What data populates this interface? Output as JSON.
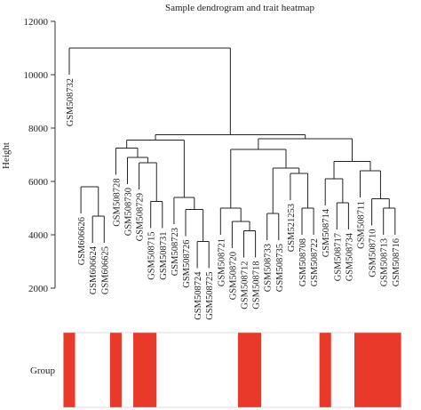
{
  "chart_data": {
    "type": "dendrogram",
    "title": "Sample dendrogram and trait heatmap",
    "ylabel": "Height",
    "ylim": [
      2000,
      12000
    ],
    "yticks": [
      2000,
      4000,
      6000,
      8000,
      10000,
      12000
    ],
    "leaves": [
      {
        "name": "GSM508732",
        "x": 1
      },
      {
        "name": "GSM606626",
        "x": 2
      },
      {
        "name": "GSM606624",
        "x": 3
      },
      {
        "name": "GSM606625",
        "x": 4
      },
      {
        "name": "GSM508728",
        "x": 5
      },
      {
        "name": "GSM508730",
        "x": 6
      },
      {
        "name": "GSM508729",
        "x": 7
      },
      {
        "name": "GSM508715",
        "x": 8
      },
      {
        "name": "GSM508731",
        "x": 9
      },
      {
        "name": "GSM508723",
        "x": 10
      },
      {
        "name": "GSM508726",
        "x": 11
      },
      {
        "name": "GSM508724",
        "x": 12
      },
      {
        "name": "GSM508725",
        "x": 13
      },
      {
        "name": "GSM508721",
        "x": 14
      },
      {
        "name": "GSM508720",
        "x": 15
      },
      {
        "name": "GSM508712",
        "x": 16
      },
      {
        "name": "GSM508718",
        "x": 17
      },
      {
        "name": "GSM508733",
        "x": 18
      },
      {
        "name": "GSM508735",
        "x": 19
      },
      {
        "name": "GSM521253",
        "x": 20
      },
      {
        "name": "GSM508708",
        "x": 21
      },
      {
        "name": "GSM508722",
        "x": 22
      },
      {
        "name": "GSM508714",
        "x": 23
      },
      {
        "name": "GSM508717",
        "x": 24
      },
      {
        "name": "GSM508734",
        "x": 25
      },
      {
        "name": "GSM508711",
        "x": 26
      },
      {
        "name": "GSM508710",
        "x": 27
      },
      {
        "name": "GSM508713",
        "x": 28
      },
      {
        "name": "GSM508716",
        "x": 29
      }
    ],
    "merges": [
      {
        "id": "m1",
        "children": [
          3,
          4
        ],
        "height": 4700
      },
      {
        "id": "m2",
        "children": [
          2,
          "m1"
        ],
        "height": 5800
      },
      {
        "id": "m3",
        "children": [
          12,
          13
        ],
        "height": 3750
      },
      {
        "id": "m4",
        "children": [
          11,
          "m3"
        ],
        "height": 4950
      },
      {
        "id": "m5",
        "children": [
          10,
          "m4"
        ],
        "height": 5400
      },
      {
        "id": "m6",
        "children": [
          8,
          9
        ],
        "height": 5250
      },
      {
        "id": "m7",
        "children": [
          7,
          "m6"
        ],
        "height": 6700
      },
      {
        "id": "m8",
        "children": [
          6,
          "m7"
        ],
        "height": 6900
      },
      {
        "id": "m9",
        "children": [
          5,
          "m8"
        ],
        "height": 7250
      },
      {
        "id": "m10",
        "children": [
          "m9",
          "m5"
        ],
        "height": 7550
      },
      {
        "id": "m11",
        "children": [
          16,
          17
        ],
        "height": 4150
      },
      {
        "id": "m12",
        "children": [
          15,
          "m11"
        ],
        "height": 4500
      },
      {
        "id": "m13",
        "children": [
          14,
          "m12"
        ],
        "height": 5000
      },
      {
        "id": "m14",
        "children": [
          18,
          19
        ],
        "height": 4800
      },
      {
        "id": "m15",
        "children": [
          21,
          22
        ],
        "height": 5000
      },
      {
        "id": "m16",
        "children": [
          20,
          "m15"
        ],
        "height": 6300
      },
      {
        "id": "m17",
        "children": [
          "m14",
          "m16"
        ],
        "height": 6500
      },
      {
        "id": "m18",
        "children": [
          "m13",
          "m17"
        ],
        "height": 7200
      },
      {
        "id": "m19",
        "children": [
          24,
          25
        ],
        "height": 5200
      },
      {
        "id": "m20",
        "children": [
          23,
          "m19"
        ],
        "height": 6100
      },
      {
        "id": "m21",
        "children": [
          28,
          29
        ],
        "height": 5000
      },
      {
        "id": "m22",
        "children": [
          27,
          "m21"
        ],
        "height": 5350
      },
      {
        "id": "m23",
        "children": [
          26,
          "m22"
        ],
        "height": 6400
      },
      {
        "id": "m24",
        "children": [
          "m20",
          "m23"
        ],
        "height": 6750
      },
      {
        "id": "m25",
        "children": [
          "m18",
          "m24"
        ],
        "height": 7600
      },
      {
        "id": "m26",
        "children": [
          "m10",
          "m25"
        ],
        "height": 7750
      },
      {
        "id": "m27",
        "children": [
          1,
          "m26"
        ],
        "height": 11000
      }
    ],
    "trait_rows": [
      {
        "label": "Group",
        "colors": {
          "1": "#e8392a",
          "0": "#ffffff"
        },
        "values": [
          1,
          0,
          0,
          0,
          1,
          0,
          1,
          1,
          0,
          0,
          0,
          0,
          0,
          0,
          0,
          1,
          1,
          0,
          0,
          0,
          0,
          0,
          1,
          0,
          0,
          1,
          1,
          1,
          1
        ]
      }
    ]
  }
}
